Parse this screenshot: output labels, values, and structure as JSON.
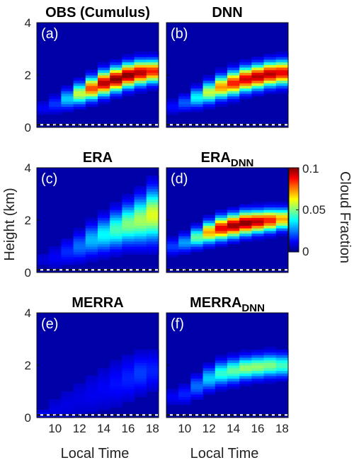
{
  "figure": {
    "ylabel": "Height (km)",
    "xlabel": "Local Time",
    "colorbar_label": "Cloud Fraction",
    "colorbar_ticks": [
      "0.1",
      "0.05",
      "0"
    ]
  },
  "chart_data": {
    "type": "heatmap",
    "colormap": "jet",
    "clim": [
      0,
      0.1
    ],
    "x_ticks": [
      10,
      12,
      14,
      16,
      18
    ],
    "y_ticks": [
      0,
      2,
      4
    ],
    "xlim": [
      8.5,
      18.5
    ],
    "ylim": [
      0,
      4
    ],
    "panels": [
      {
        "id": "a",
        "title": "OBS (Cumulus)",
        "subscript": "",
        "letter": "(a)",
        "peak": 0.1,
        "centers": [
          0.75,
          0.9,
          1.1,
          1.3,
          1.5,
          1.7,
          1.85,
          2.0,
          2.1,
          2.15
        ],
        "amps": [
          0.08,
          0.14,
          0.3,
          0.55,
          0.8,
          0.95,
          1.0,
          1.0,
          0.95,
          0.85
        ],
        "widths": [
          0.25,
          0.3,
          0.35,
          0.38,
          0.4,
          0.42,
          0.42,
          0.42,
          0.42,
          0.4
        ]
      },
      {
        "id": "b",
        "title": "DNN",
        "subscript": "",
        "letter": "(b)",
        "peak": 0.1,
        "centers": [
          0.8,
          0.95,
          1.15,
          1.35,
          1.55,
          1.7,
          1.85,
          1.95,
          2.05,
          2.1
        ],
        "amps": [
          0.1,
          0.18,
          0.35,
          0.55,
          0.72,
          0.85,
          0.92,
          0.95,
          0.95,
          0.9
        ],
        "widths": [
          0.25,
          0.3,
          0.35,
          0.38,
          0.4,
          0.42,
          0.42,
          0.42,
          0.42,
          0.42
        ]
      },
      {
        "id": "c",
        "title": "ERA",
        "subscript": "",
        "letter": "(c)",
        "peak": 0.1,
        "centers": [
          0.5,
          0.6,
          0.8,
          1.0,
          1.25,
          1.45,
          1.65,
          1.85,
          2.0,
          2.2
        ],
        "amps": [
          0.05,
          0.08,
          0.13,
          0.2,
          0.28,
          0.35,
          0.42,
          0.48,
          0.52,
          0.58
        ],
        "widths": [
          0.35,
          0.4,
          0.45,
          0.5,
          0.55,
          0.6,
          0.65,
          0.7,
          0.8,
          0.9
        ]
      },
      {
        "id": "d",
        "title": "ERA",
        "subscript": "DNN",
        "letter": "(d)",
        "peak": 0.1,
        "centers": [
          1.0,
          1.15,
          1.35,
          1.55,
          1.7,
          1.8,
          1.9,
          1.95,
          2.0,
          2.05
        ],
        "amps": [
          0.15,
          0.25,
          0.45,
          0.7,
          0.9,
          0.98,
          1.0,
          0.95,
          0.85,
          0.7
        ],
        "widths": [
          0.3,
          0.32,
          0.35,
          0.38,
          0.4,
          0.4,
          0.4,
          0.38,
          0.38,
          0.36
        ]
      },
      {
        "id": "e",
        "title": "MERRA",
        "subscript": "",
        "letter": "(e)",
        "peak": 0.1,
        "centers": [
          0.15,
          0.3,
          0.5,
          0.7,
          0.9,
          1.1,
          1.3,
          1.5,
          1.7,
          1.8
        ],
        "amps": [
          0.1,
          0.06,
          0.06,
          0.06,
          0.07,
          0.08,
          0.1,
          0.12,
          0.15,
          0.12
        ],
        "widths": [
          0.12,
          0.5,
          0.6,
          0.7,
          0.8,
          0.8,
          0.8,
          0.8,
          0.7,
          0.7
        ]
      },
      {
        "id": "f",
        "title": "MERRA",
        "subscript": "DNN",
        "letter": "(f)",
        "peak": 0.1,
        "centers": [
          0.8,
          0.9,
          1.2,
          1.5,
          1.7,
          1.8,
          1.9,
          1.95,
          2.0,
          2.0
        ],
        "amps": [
          0.08,
          0.12,
          0.2,
          0.3,
          0.4,
          0.45,
          0.5,
          0.5,
          0.48,
          0.42
        ],
        "widths": [
          0.3,
          0.35,
          0.4,
          0.42,
          0.42,
          0.42,
          0.4,
          0.4,
          0.4,
          0.4
        ]
      }
    ]
  }
}
